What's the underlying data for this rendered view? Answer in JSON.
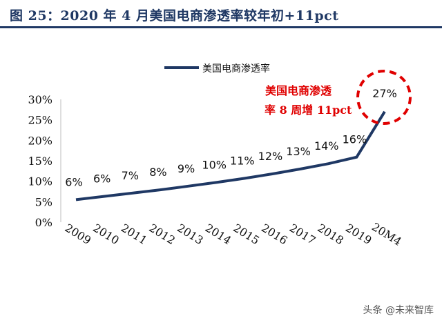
{
  "header": {
    "title": "图 25：2020 年 4 月美国电商渗透率较年初+11pct"
  },
  "watermark": "头条 @未来智库",
  "chart_data": {
    "type": "line",
    "categories": [
      "2009",
      "2010",
      "2011",
      "2012",
      "2013",
      "2014",
      "2015",
      "2016",
      "2017",
      "2018",
      "2019",
      "20M4"
    ],
    "series": [
      {
        "name": "美国电商渗透率",
        "values": [
          5.5,
          6.3,
          7.1,
          7.9,
          8.8,
          9.7,
          10.7,
          11.8,
          13.0,
          14.3,
          15.9,
          27.0
        ],
        "labels": [
          "6%",
          "6%",
          "7%",
          "8%",
          "9%",
          "10%",
          "11%",
          "12%",
          "13%",
          "14%",
          "16%",
          "27%"
        ],
        "color": "#1f3864"
      }
    ],
    "yticks": [
      "0%",
      "5%",
      "10%",
      "15%",
      "20%",
      "25%",
      "30%"
    ],
    "ylim": [
      0,
      30
    ],
    "legend_position": "top",
    "annotation": {
      "line1": "美国电商渗透",
      "line2": "率 8 周增 11pct",
      "color": "#e00000"
    }
  }
}
